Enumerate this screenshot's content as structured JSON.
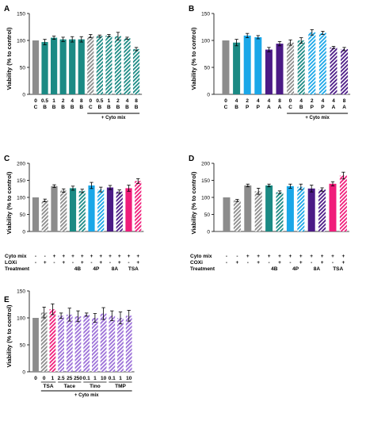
{
  "colors": {
    "gray": "#8c8c8c",
    "teal": "#1b8a84",
    "blue": "#1aa7e8",
    "purple": "#4b1a86",
    "pink": "#f01c7a",
    "lavender": "#9b6fd8",
    "black": "#000000"
  },
  "chart_data": [
    {
      "panel": "A",
      "type": "bar",
      "ylabel": "Viability (% to control)",
      "ylim": [
        0,
        150
      ],
      "yticks": [
        0,
        50,
        100,
        150
      ],
      "bars": [
        {
          "value": 100,
          "err": 0,
          "color": "gray",
          "hatched": false
        },
        {
          "value": 97,
          "err": 5,
          "color": "teal",
          "hatched": false
        },
        {
          "value": 105,
          "err": 3,
          "color": "teal",
          "hatched": false
        },
        {
          "value": 102,
          "err": 4,
          "color": "teal",
          "hatched": false
        },
        {
          "value": 102,
          "err": 5,
          "color": "teal",
          "hatched": false
        },
        {
          "value": 102,
          "err": 5,
          "color": "teal",
          "hatched": false
        },
        {
          "value": 108,
          "err": 3,
          "color": "gray",
          "hatched": true
        },
        {
          "value": 108,
          "err": 2,
          "color": "teal",
          "hatched": true
        },
        {
          "value": 109,
          "err": 2,
          "color": "teal",
          "hatched": true
        },
        {
          "value": 108,
          "err": 7,
          "color": "teal",
          "hatched": true
        },
        {
          "value": 104,
          "err": 2,
          "color": "teal",
          "hatched": true
        },
        {
          "value": 84,
          "err": 3,
          "color": "teal",
          "hatched": true
        }
      ],
      "label_rows": [
        [
          "0",
          "0.5",
          "1",
          "2",
          "4",
          "8",
          "0",
          "0.5",
          "1",
          "2",
          "4",
          "8"
        ],
        [
          "C",
          "B",
          "B",
          "B",
          "B",
          "B",
          "C",
          "B",
          "B",
          "B",
          "B",
          "B"
        ]
      ],
      "group_label": "+ Cyto mix",
      "group_start": 6,
      "group_end": 11
    },
    {
      "panel": "B",
      "type": "bar",
      "ylabel": "Viability (% to control)",
      "ylim": [
        0,
        150
      ],
      "yticks": [
        0,
        50,
        100,
        150
      ],
      "bars": [
        {
          "value": 100,
          "err": 0,
          "color": "gray",
          "hatched": false
        },
        {
          "value": 96,
          "err": 6,
          "color": "teal",
          "hatched": false
        },
        {
          "value": 109,
          "err": 4,
          "color": "blue",
          "hatched": false
        },
        {
          "value": 106,
          "err": 3,
          "color": "blue",
          "hatched": false
        },
        {
          "value": 83,
          "err": 4,
          "color": "purple",
          "hatched": false
        },
        {
          "value": 94,
          "err": 4,
          "color": "purple",
          "hatched": false
        },
        {
          "value": 96,
          "err": 5,
          "color": "gray",
          "hatched": true
        },
        {
          "value": 100,
          "err": 5,
          "color": "teal",
          "hatched": true
        },
        {
          "value": 115,
          "err": 5,
          "color": "blue",
          "hatched": true
        },
        {
          "value": 114,
          "err": 3,
          "color": "blue",
          "hatched": true
        },
        {
          "value": 87,
          "err": 2,
          "color": "purple",
          "hatched": true
        },
        {
          "value": 84,
          "err": 3,
          "color": "purple",
          "hatched": true
        }
      ],
      "label_rows": [
        [
          "0",
          "4",
          "2",
          "4",
          "4",
          "8",
          "0",
          "4",
          "2",
          "4",
          "4",
          "8"
        ],
        [
          "C",
          "B",
          "P",
          "P",
          "A",
          "A",
          "C",
          "B",
          "P",
          "P",
          "A",
          "A"
        ]
      ],
      "group_label": "+ Cyto mix",
      "group_start": 6,
      "group_end": 11
    },
    {
      "panel": "C",
      "type": "bar",
      "ylabel": "Viability (% to control)",
      "ylim": [
        0,
        200
      ],
      "yticks": [
        0,
        50,
        100,
        150,
        200
      ],
      "bars": [
        {
          "value": 100,
          "err": 0,
          "color": "gray",
          "hatched": false
        },
        {
          "value": 91,
          "err": 4,
          "color": "gray",
          "hatched": true
        },
        {
          "value": 133,
          "err": 4,
          "color": "gray",
          "hatched": false
        },
        {
          "value": 120,
          "err": 5,
          "color": "gray",
          "hatched": true
        },
        {
          "value": 127,
          "err": 6,
          "color": "teal",
          "hatched": false
        },
        {
          "value": 119,
          "err": 5,
          "color": "teal",
          "hatched": true
        },
        {
          "value": 135,
          "err": 9,
          "color": "blue",
          "hatched": false
        },
        {
          "value": 123,
          "err": 7,
          "color": "blue",
          "hatched": true
        },
        {
          "value": 129,
          "err": 6,
          "color": "purple",
          "hatched": false
        },
        {
          "value": 117,
          "err": 5,
          "color": "purple",
          "hatched": true
        },
        {
          "value": 127,
          "err": 9,
          "color": "pink",
          "hatched": false
        },
        {
          "value": 148,
          "err": 7,
          "color": "pink",
          "hatched": true
        }
      ],
      "row_labels": [
        "Cyto mix",
        "LOXi",
        "Treatment"
      ],
      "label_rows": [
        [
          "-",
          "-",
          "+",
          "+",
          "+",
          "+",
          "+",
          "+",
          "+",
          "+",
          "+",
          "+"
        ],
        [
          "-",
          "+",
          "-",
          "+",
          "-",
          "+",
          "-",
          "+",
          "-",
          "+",
          "-",
          "+"
        ]
      ],
      "treatment_labels": [
        {
          "text": "4B",
          "bars": [
            4,
            5
          ]
        },
        {
          "text": "4P",
          "bars": [
            6,
            7
          ]
        },
        {
          "text": "8A",
          "bars": [
            8,
            9
          ]
        },
        {
          "text": "TSA",
          "bars": [
            10,
            11
          ]
        }
      ]
    },
    {
      "panel": "D",
      "type": "bar",
      "ylabel": "Viability (% to control)",
      "ylim": [
        0,
        200
      ],
      "yticks": [
        0,
        50,
        100,
        150,
        200
      ],
      "bars": [
        {
          "value": 100,
          "err": 0,
          "color": "gray",
          "hatched": false
        },
        {
          "value": 91,
          "err": 3,
          "color": "gray",
          "hatched": true
        },
        {
          "value": 135,
          "err": 4,
          "color": "gray",
          "hatched": false
        },
        {
          "value": 118,
          "err": 9,
          "color": "gray",
          "hatched": true
        },
        {
          "value": 135,
          "err": 4,
          "color": "teal",
          "hatched": false
        },
        {
          "value": 115,
          "err": 4,
          "color": "teal",
          "hatched": true
        },
        {
          "value": 133,
          "err": 6,
          "color": "blue",
          "hatched": false
        },
        {
          "value": 131,
          "err": 8,
          "color": "blue",
          "hatched": true
        },
        {
          "value": 126,
          "err": 10,
          "color": "purple",
          "hatched": false
        },
        {
          "value": 123,
          "err": 5,
          "color": "purple",
          "hatched": true
        },
        {
          "value": 140,
          "err": 6,
          "color": "pink",
          "hatched": false
        },
        {
          "value": 164,
          "err": 10,
          "color": "pink",
          "hatched": true
        }
      ],
      "row_labels": [
        "Cyto mix",
        "COXi",
        "Treatment"
      ],
      "label_rows": [
        [
          "-",
          "-",
          "+",
          "+",
          "+",
          "+",
          "+",
          "+",
          "+",
          "+",
          "+",
          "+"
        ],
        [
          "-",
          "+",
          "-",
          "+",
          "-",
          "+",
          "-",
          "+",
          "-",
          "+",
          "-",
          "+"
        ]
      ],
      "treatment_labels": [
        {
          "text": "4B",
          "bars": [
            4,
            5
          ]
        },
        {
          "text": "4P",
          "bars": [
            6,
            7
          ]
        },
        {
          "text": "8A",
          "bars": [
            8,
            9
          ]
        },
        {
          "text": "TSA",
          "bars": [
            10,
            11
          ]
        }
      ]
    },
    {
      "panel": "E",
      "type": "bar",
      "ylabel": "Viability (% to control)",
      "ylim": [
        0,
        150
      ],
      "yticks": [
        0,
        50,
        100,
        150
      ],
      "bars": [
        {
          "value": 100,
          "err": 0,
          "color": "gray",
          "hatched": false
        },
        {
          "value": 110,
          "err": 10,
          "color": "gray",
          "hatched": true
        },
        {
          "value": 116,
          "err": 10,
          "color": "pink",
          "hatched": true
        },
        {
          "value": 104,
          "err": 5,
          "color": "lavender",
          "hatched": true
        },
        {
          "value": 106,
          "err": 12,
          "color": "lavender",
          "hatched": true
        },
        {
          "value": 103,
          "err": 10,
          "color": "lavender",
          "hatched": true
        },
        {
          "value": 106,
          "err": 3,
          "color": "lavender",
          "hatched": true
        },
        {
          "value": 100,
          "err": 8,
          "color": "lavender",
          "hatched": true
        },
        {
          "value": 108,
          "err": 11,
          "color": "lavender",
          "hatched": true
        },
        {
          "value": 104,
          "err": 9,
          "color": "lavender",
          "hatched": true
        },
        {
          "value": 100,
          "err": 11,
          "color": "lavender",
          "hatched": true
        },
        {
          "value": 104,
          "err": 10,
          "color": "lavender",
          "hatched": true
        }
      ],
      "label_rows": [
        [
          "0",
          "0",
          "1",
          "2.5",
          "25",
          "250",
          "0.1",
          "1",
          "10",
          "0.1",
          "1",
          "10"
        ]
      ],
      "sub_groups": [
        {
          "text": "TSA",
          "bars": [
            1,
            2
          ]
        },
        {
          "text": "Tace",
          "bars": [
            3,
            5
          ]
        },
        {
          "text": "Tino",
          "bars": [
            6,
            8
          ]
        },
        {
          "text": "TMP",
          "bars": [
            9,
            11
          ]
        }
      ],
      "group_label": "+ Cyto mix",
      "group_start": 1,
      "group_end": 11
    }
  ]
}
